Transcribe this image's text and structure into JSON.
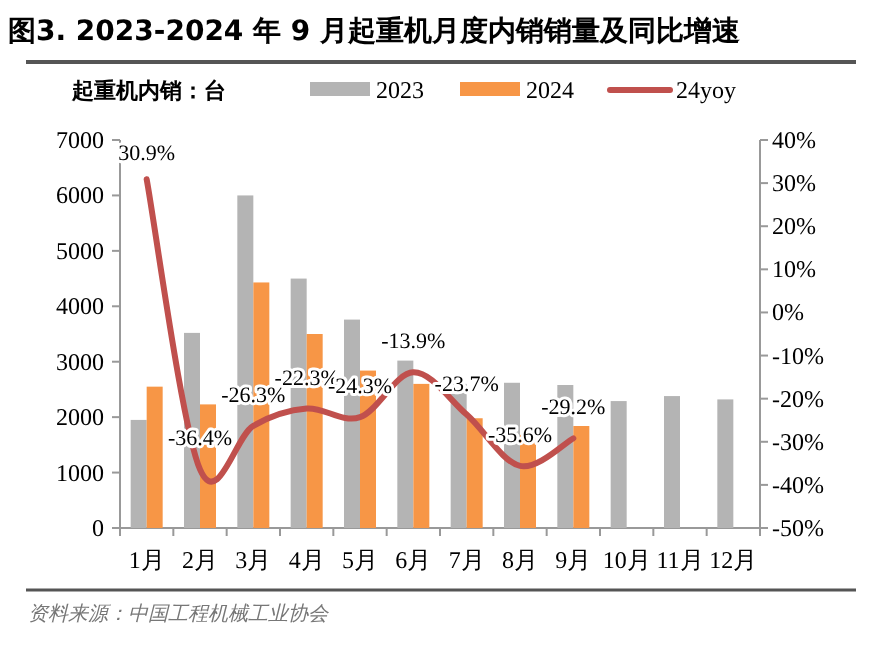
{
  "chart_data": {
    "type": "bar",
    "title": "图3. 2023-2024 年 9 月起重机月度内销销量及同比增速",
    "ylabel": "起重机内销：台",
    "categories": [
      "1月",
      "2月",
      "3月",
      "4月",
      "5月",
      "6月",
      "7月",
      "8月",
      "9月",
      "10月",
      "11月",
      "12月"
    ],
    "series": [
      {
        "name": "2023",
        "color": "#b4b4b4",
        "values": [
          1950,
          3520,
          6000,
          4500,
          3760,
          3020,
          2600,
          2620,
          2580,
          2290,
          2380,
          2320
        ]
      },
      {
        "name": "2024",
        "color": "#f79646",
        "values": [
          2550,
          2230,
          4430,
          3500,
          2840,
          2600,
          1980,
          1680,
          1840,
          null,
          null,
          null
        ]
      },
      {
        "name": "24yoy",
        "type": "line",
        "axis": "y2",
        "color": "#c0504d",
        "values": [
          30.9,
          -36.4,
          -26.3,
          -22.3,
          -24.3,
          -13.9,
          -23.7,
          -35.6,
          -29.2,
          null,
          null,
          null
        ],
        "value_labels": [
          "30.9%",
          "-36.4%",
          "-26.3%",
          "-22.3%",
          "-24.3%",
          "-13.9%",
          "-23.7%",
          "-35.6%",
          "-29.2%",
          null,
          null,
          null
        ]
      }
    ],
    "ylim": [
      0,
      7000
    ],
    "yticks": [
      0,
      1000,
      2000,
      3000,
      4000,
      5000,
      6000,
      7000
    ],
    "y2lim": [
      -50,
      40
    ],
    "y2ticks": [
      {
        "value": -50,
        "label": "-50%"
      },
      {
        "value": -40,
        "label": "-40%"
      },
      {
        "value": -30,
        "label": "-30%"
      },
      {
        "value": -20,
        "label": "-20%"
      },
      {
        "value": -10,
        "label": "-10%"
      },
      {
        "value": 0,
        "label": "0%"
      },
      {
        "value": 10,
        "label": "10%"
      },
      {
        "value": 20,
        "label": "20%"
      },
      {
        "value": 30,
        "label": "30%"
      },
      {
        "value": 40,
        "label": "40%"
      }
    ],
    "grid": false,
    "legend": "top",
    "annotations": [
      "资料来源：中国工程机械工业协会"
    ]
  }
}
